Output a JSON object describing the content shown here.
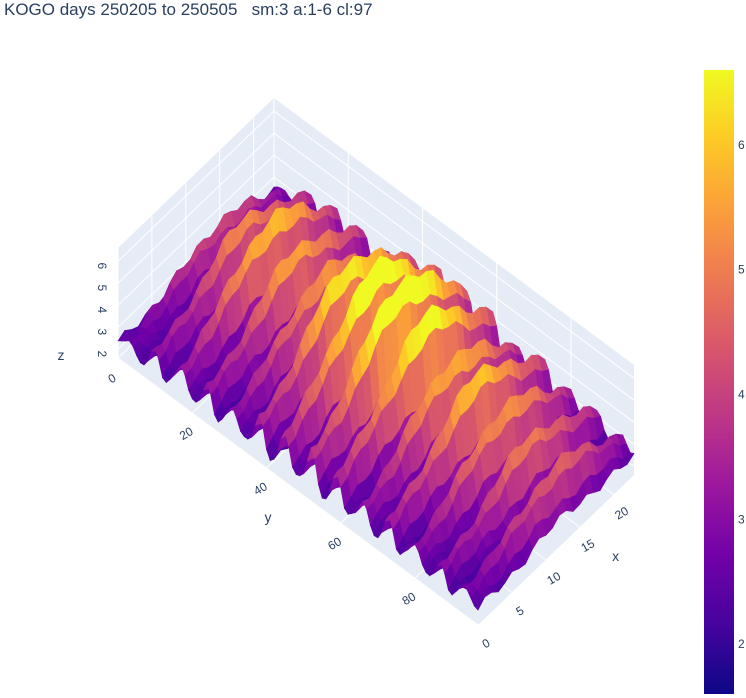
{
  "chart_data": {
    "type": "surface3d",
    "title": "KOGO days 250205 to 250505   sm:3 a:1-6 cl:97",
    "x_axis": {
      "label": "x",
      "range": [
        0,
        23
      ],
      "ticks": [
        0,
        5,
        10,
        15,
        20
      ]
    },
    "y_axis": {
      "label": "y",
      "range": [
        0,
        97
      ],
      "ticks": [
        0,
        20,
        40,
        60,
        80
      ]
    },
    "z_axis": {
      "label": "z",
      "range": [
        1.6,
        6.6
      ],
      "ticks": [
        2,
        3,
        4,
        5,
        6
      ],
      "tick_labels": [
        "2",
        "3",
        "4",
        "5",
        "6"
      ]
    },
    "colorbar": {
      "range": [
        1.6,
        6.6
      ],
      "ticks": [
        2,
        3,
        4,
        5,
        6
      ],
      "tick_labels": [
        "2",
        "3",
        "4",
        "5",
        "6"
      ],
      "colorscale": "Plasma"
    },
    "grid": true,
    "surface": {
      "grid_resolution": {
        "x": 24,
        "y": 98
      },
      "description_peaks": "daily ridge per weekday; strongest ridges around y 40-60; lower near y 0 and y 95"
    }
  }
}
